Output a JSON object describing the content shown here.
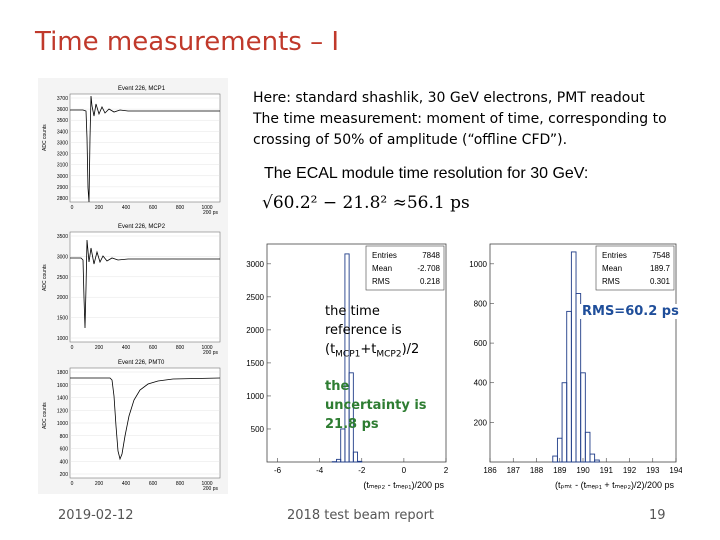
{
  "slide": {
    "title": "Time measurements – I",
    "intro_lines": [
      "Here: standard shashlik, 30 GeV electrons, PMT readout",
      "The time measurement: moment of time, corresponding to",
      "crossing of 50% of amplitude (“offline CFD”)."
    ],
    "resolution_heading": "The ECAL module time resolution for 30 GeV:",
    "formula": "√60.2² − 21.8² ≈56.1 ps",
    "note_reference": {
      "line1": "the time",
      "line2": "reference is",
      "prefix": "(t",
      "sub1": "MCP1",
      "plus": "+t",
      "sub2": "MCP2",
      "suffix": ")/2"
    },
    "note_uncertainty": [
      "the",
      "uncertainty is",
      "21.8 ps"
    ],
    "rms_note": "RMS=60.2 ps",
    "footer": {
      "date": "2019-02-12",
      "center": "2018 test beam report",
      "page": "19"
    }
  },
  "waveforms": [
    {
      "title": "Event   226, MCP1",
      "ylabel": "ADC counts",
      "yticks": [
        "3700",
        "3600",
        "3500",
        "3400",
        "3300",
        "3200",
        "3100",
        "3000",
        "2900",
        "2800"
      ],
      "xticks": [
        "0",
        "200",
        "400",
        "600",
        "800",
        "1000"
      ],
      "xunit": "200 ps"
    },
    {
      "title": "Event   226, MCP2",
      "ylabel": "ADC counts",
      "yticks": [
        "3500",
        "3000",
        "2500",
        "2000",
        "1500",
        "1000"
      ],
      "xticks": [
        "0",
        "200",
        "400",
        "600",
        "800",
        "1000"
      ],
      "xunit": "200 ps"
    },
    {
      "title": "Event   226, PMT0",
      "ylabel": "ADC counts",
      "yticks": [
        "1800",
        "1600",
        "1400",
        "1200",
        "1000",
        "800",
        "600",
        "400",
        "200"
      ],
      "xticks": [
        "0",
        "200",
        "400",
        "600",
        "800",
        "1000"
      ],
      "xunit": "200 ps"
    }
  ],
  "chart_data": [
    {
      "type": "bar",
      "stats": {
        "entries_label": "Entries",
        "entries": "7848",
        "mean_label": "Mean",
        "mean": "-2.708",
        "rms_label": "RMS",
        "rms": "0.218"
      },
      "xlim": [
        -6.5,
        2
      ],
      "ylim": [
        0,
        3300
      ],
      "xticks": [
        -6,
        -4,
        -2,
        0,
        2
      ],
      "xtick_labels": [
        "-6",
        "-4",
        "-2",
        "0",
        "2"
      ],
      "yticks": [
        500,
        1000,
        1500,
        2000,
        2500,
        3000
      ],
      "ytick_labels": [
        "500",
        "1000",
        "1500",
        "2000",
        "2500",
        "3000"
      ],
      "xlabel": "(tₘₑₚ₂ - tₘₑₚ₁)/200 ps",
      "bins": [
        {
          "x": -3.3,
          "y": 5
        },
        {
          "x": -3.1,
          "y": 40
        },
        {
          "x": -2.9,
          "y": 500
        },
        {
          "x": -2.7,
          "y": 3150
        },
        {
          "x": -2.5,
          "y": 1350
        },
        {
          "x": -2.3,
          "y": 150
        },
        {
          "x": -2.1,
          "y": 10
        }
      ],
      "bin_width": 0.2
    },
    {
      "type": "bar",
      "stats": {
        "entries_label": "Entries",
        "entries": "7548",
        "mean_label": "Mean",
        "mean": "189.7",
        "rms_label": "RMS",
        "rms": "0.301"
      },
      "xlim": [
        186,
        194
      ],
      "ylim": [
        0,
        1100
      ],
      "xticks": [
        186,
        187,
        188,
        189,
        190,
        191,
        192,
        193,
        194
      ],
      "xtick_labels": [
        "186",
        "187",
        "188",
        "189",
        "190",
        "191",
        "192",
        "193",
        "194"
      ],
      "yticks": [
        200,
        400,
        600,
        800,
        1000
      ],
      "ytick_labels": [
        "200",
        "400",
        "600",
        "800",
        "1000"
      ],
      "xlabel": "(tₚₘₜ - (tₘₑₚ₁ + tₘₑₚ₂)/2)/200 ps",
      "bins": [
        {
          "x": 188.8,
          "y": 30
        },
        {
          "x": 189.0,
          "y": 120
        },
        {
          "x": 189.2,
          "y": 400
        },
        {
          "x": 189.4,
          "y": 760
        },
        {
          "x": 189.6,
          "y": 1060
        },
        {
          "x": 189.8,
          "y": 850
        },
        {
          "x": 190.0,
          "y": 450
        },
        {
          "x": 190.2,
          "y": 150
        },
        {
          "x": 190.4,
          "y": 40
        },
        {
          "x": 190.6,
          "y": 10
        }
      ],
      "bin_width": 0.2
    }
  ]
}
